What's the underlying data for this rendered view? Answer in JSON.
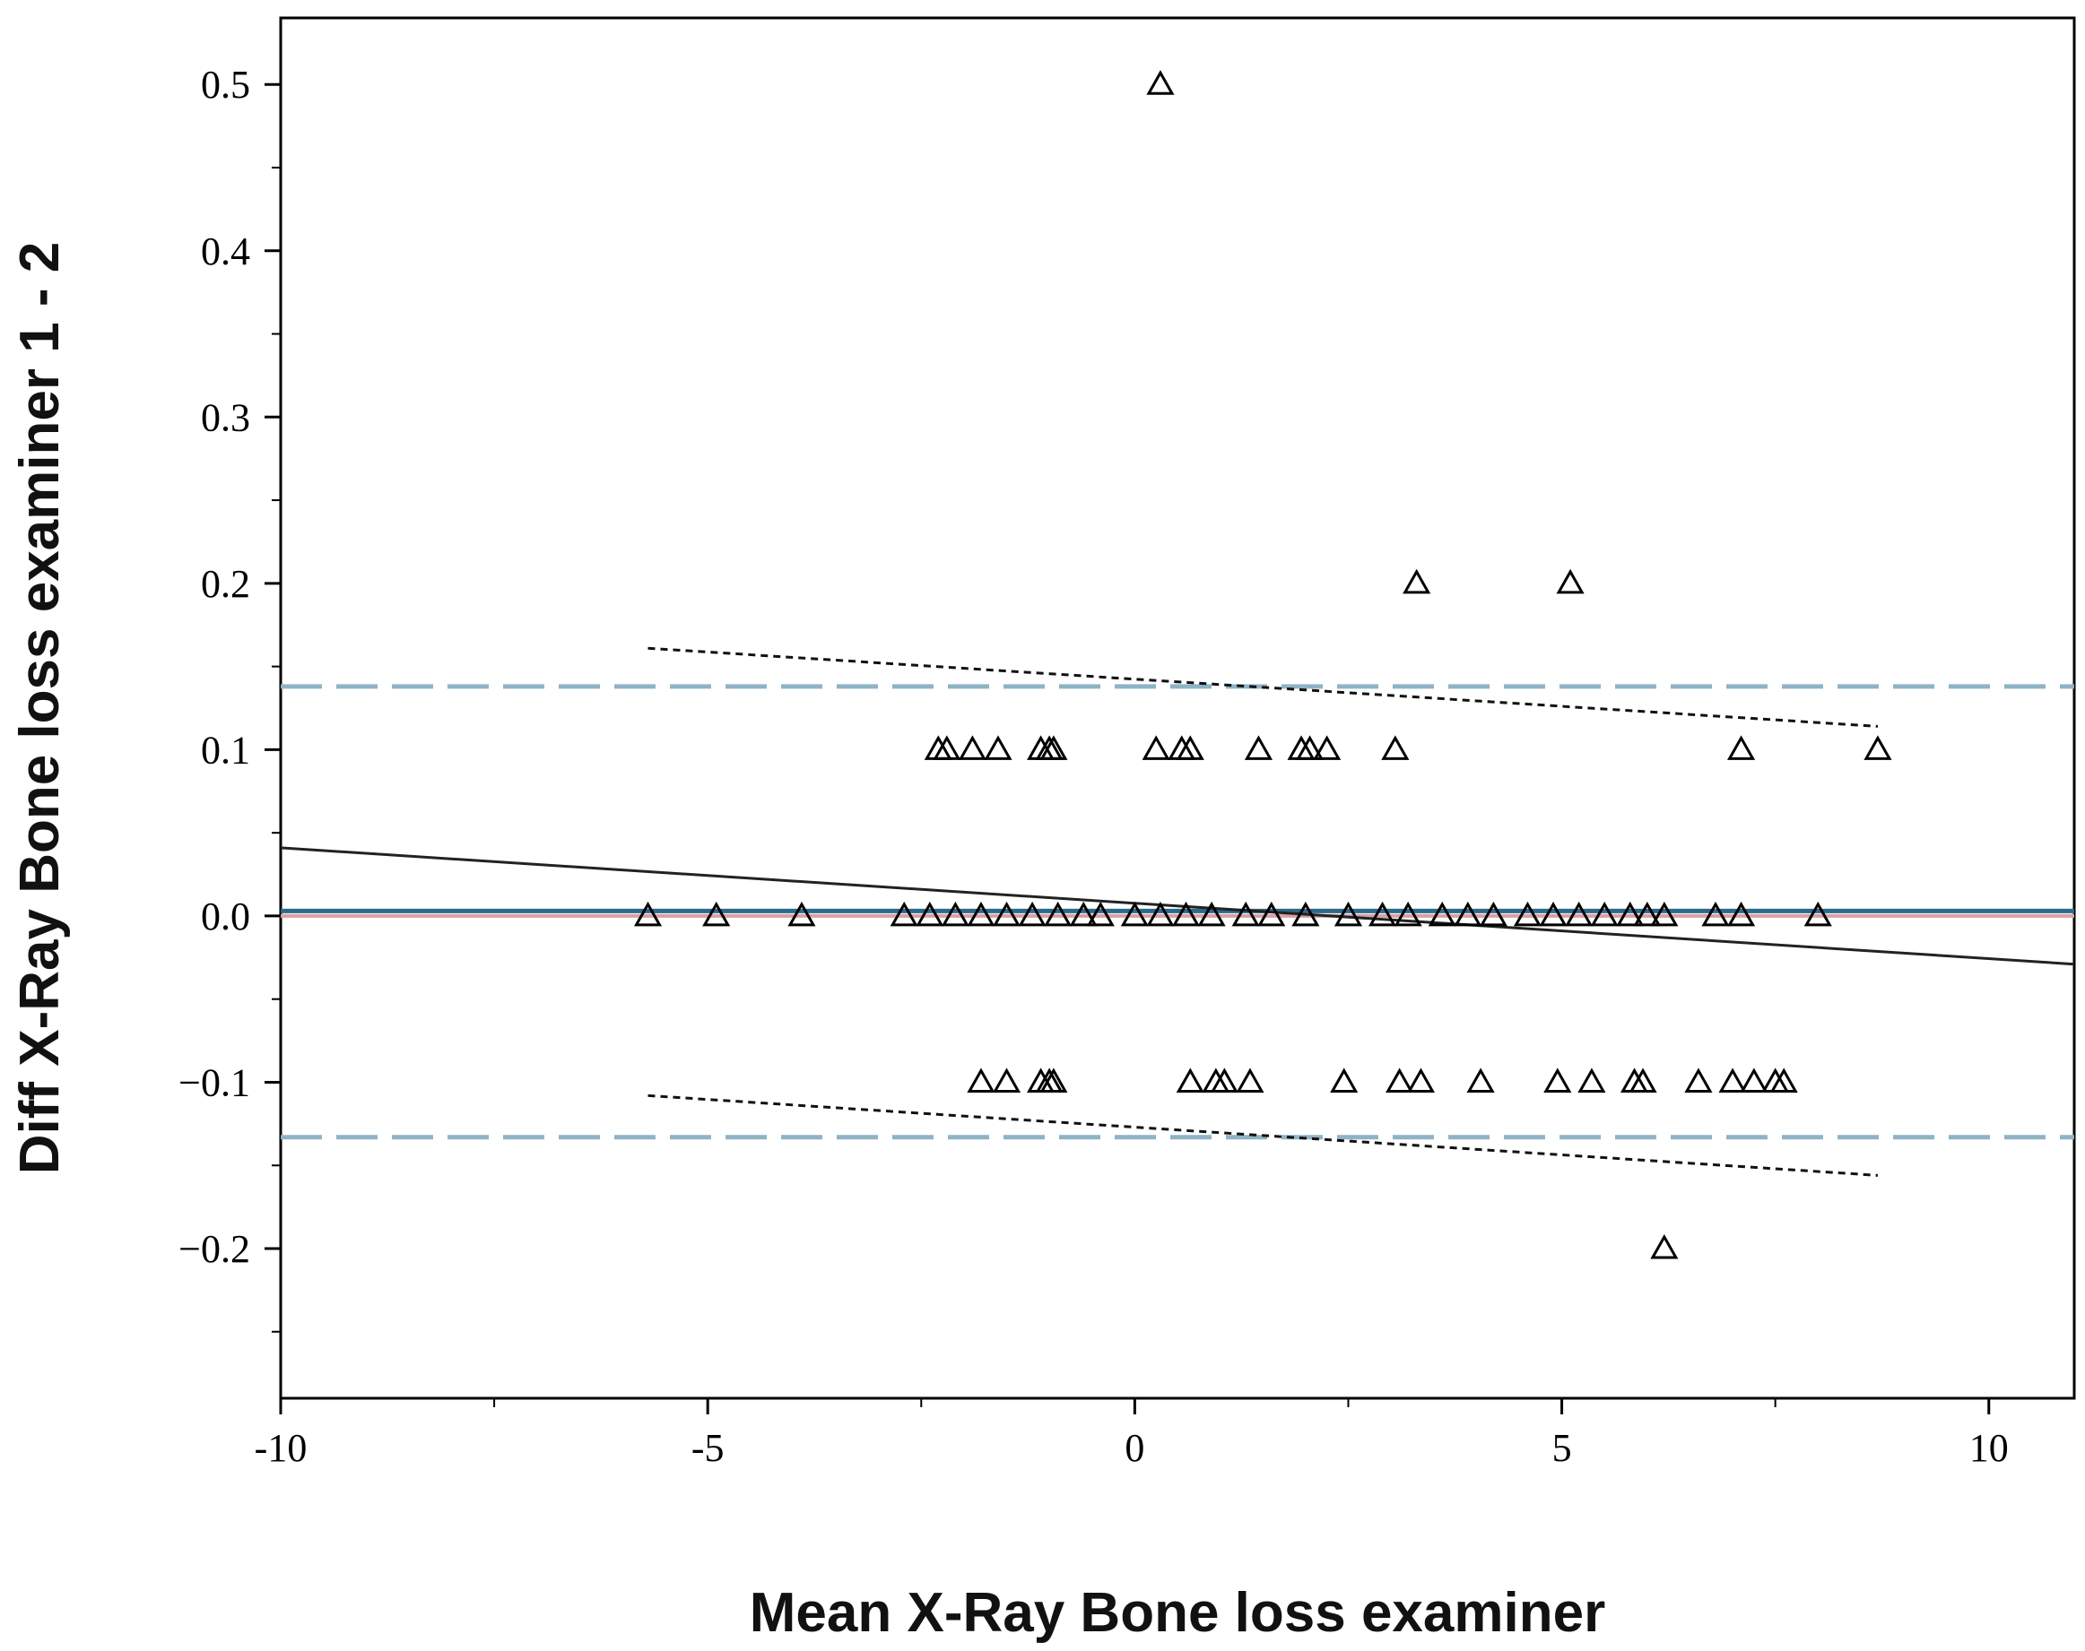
{
  "chart_data": {
    "type": "scatter",
    "xlabel": "Mean X-Ray Bone loss examiner",
    "ylabel": "Diff X-Ray Bone loss examiner 1 - 2",
    "xlim": [
      -10,
      11
    ],
    "ylim": [
      -0.29,
      0.54
    ],
    "x_ticks": [
      -10,
      -5,
      0,
      5,
      10
    ],
    "x_tick_labels": [
      "-10",
      "-5",
      "0",
      "5",
      "10"
    ],
    "y_ticks": [
      -0.2,
      -0.1,
      0.0,
      0.1,
      0.2,
      0.3,
      0.4,
      0.5
    ],
    "y_tick_labels": [
      "−0.2",
      "−0.1",
      "0.0",
      "0.1",
      "0.2",
      "0.3",
      "0.4",
      "0.5"
    ],
    "marker": "open-triangle",
    "colors": {
      "mean_difference": "#2b6a8a",
      "zero_line": "#d9a0a8",
      "limits_of_agreement": "#8fb3c6",
      "regression": "#222222",
      "points": "#000000"
    },
    "series": [
      {
        "name": "differences",
        "points": [
          [
            0.3,
            0.5
          ],
          [
            3.3,
            0.2
          ],
          [
            5.1,
            0.2
          ],
          [
            -2.3,
            0.1
          ],
          [
            -2.2,
            0.1
          ],
          [
            -1.9,
            0.1
          ],
          [
            -1.6,
            0.1
          ],
          [
            -1.1,
            0.1
          ],
          [
            -1.0,
            0.1
          ],
          [
            -0.95,
            0.1
          ],
          [
            0.25,
            0.1
          ],
          [
            0.55,
            0.1
          ],
          [
            0.65,
            0.1
          ],
          [
            1.45,
            0.1
          ],
          [
            1.95,
            0.1
          ],
          [
            2.05,
            0.1
          ],
          [
            2.25,
            0.1
          ],
          [
            3.05,
            0.1
          ],
          [
            7.1,
            0.1
          ],
          [
            8.7,
            0.1
          ],
          [
            -5.7,
            0.0
          ],
          [
            -4.9,
            0.0
          ],
          [
            -3.9,
            0.0
          ],
          [
            -2.7,
            0.0
          ],
          [
            -2.4,
            0.0
          ],
          [
            -2.1,
            0.0
          ],
          [
            -1.8,
            0.0
          ],
          [
            -1.5,
            0.0
          ],
          [
            -1.2,
            0.0
          ],
          [
            -0.9,
            0.0
          ],
          [
            -0.6,
            0.0
          ],
          [
            -0.4,
            0.0
          ],
          [
            0.0,
            0.0
          ],
          [
            0.3,
            0.0
          ],
          [
            0.6,
            0.0
          ],
          [
            0.9,
            0.0
          ],
          [
            1.3,
            0.0
          ],
          [
            1.6,
            0.0
          ],
          [
            2.0,
            0.0
          ],
          [
            2.5,
            0.0
          ],
          [
            2.9,
            0.0
          ],
          [
            3.2,
            0.0
          ],
          [
            3.6,
            0.0
          ],
          [
            3.9,
            0.0
          ],
          [
            4.2,
            0.0
          ],
          [
            4.6,
            0.0
          ],
          [
            4.9,
            0.0
          ],
          [
            5.2,
            0.0
          ],
          [
            5.5,
            0.0
          ],
          [
            5.8,
            0.0
          ],
          [
            6.0,
            0.0
          ],
          [
            6.2,
            0.0
          ],
          [
            6.8,
            0.0
          ],
          [
            7.1,
            0.0
          ],
          [
            8.0,
            0.0
          ],
          [
            -1.8,
            -0.1
          ],
          [
            -1.5,
            -0.1
          ],
          [
            -1.1,
            -0.1
          ],
          [
            -1.0,
            -0.1
          ],
          [
            -0.95,
            -0.1
          ],
          [
            0.65,
            -0.1
          ],
          [
            0.95,
            -0.1
          ],
          [
            1.05,
            -0.1
          ],
          [
            1.35,
            -0.1
          ],
          [
            2.45,
            -0.1
          ],
          [
            3.1,
            -0.1
          ],
          [
            3.35,
            -0.1
          ],
          [
            4.05,
            -0.1
          ],
          [
            4.95,
            -0.1
          ],
          [
            5.35,
            -0.1
          ],
          [
            5.85,
            -0.1
          ],
          [
            5.95,
            -0.1
          ],
          [
            6.6,
            -0.1
          ],
          [
            7.0,
            -0.1
          ],
          [
            7.25,
            -0.1
          ],
          [
            7.5,
            -0.1
          ],
          [
            7.6,
            -0.1
          ],
          [
            6.2,
            -0.2
          ]
        ]
      }
    ],
    "reference_lines": [
      {
        "name": "zero",
        "style": "solid",
        "y": 0.0
      },
      {
        "name": "mean_difference",
        "style": "solid",
        "y": 0.003
      },
      {
        "name": "upper_limit_of_agreement",
        "style": "dashed",
        "y": 0.138
      },
      {
        "name": "lower_limit_of_agreement",
        "style": "dashed",
        "y": -0.133
      }
    ],
    "regression_line": {
      "style": "solid",
      "x": [
        -10,
        11
      ],
      "y": [
        0.041,
        -0.029
      ]
    },
    "confidence_bands": [
      {
        "name": "upper_band",
        "style": "dotted",
        "x": [
          -5.7,
          8.7
        ],
        "y": [
          0.161,
          0.114
        ]
      },
      {
        "name": "lower_band",
        "style": "dotted",
        "x": [
          -5.7,
          8.7
        ],
        "y": [
          -0.108,
          -0.156
        ]
      }
    ]
  }
}
